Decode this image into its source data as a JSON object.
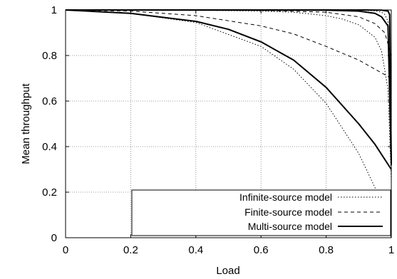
{
  "chart_data": {
    "type": "line",
    "xlabel": "Load",
    "ylabel": "Mean throughput",
    "xlim": [
      0,
      1
    ],
    "ylim": [
      0,
      1
    ],
    "x_ticks": [
      "0",
      "0.2",
      "0.4",
      "0.6",
      "0.8",
      "1"
    ],
    "y_ticks": [
      "0",
      "0.2",
      "0.4",
      "0.6",
      "0.8",
      "1"
    ],
    "grid": true,
    "legend_position": "bottom-right",
    "legend": [
      {
        "label": "Infinite-source model",
        "dash": "dotted"
      },
      {
        "label": "Finite-source model",
        "dash": "dashed"
      },
      {
        "label": "Multi-source model",
        "dash": "solid"
      }
    ],
    "series": [
      {
        "legend_index": 0,
        "x": [
          0,
          0.2,
          0.4,
          0.6,
          0.7,
          0.8,
          0.9,
          0.95,
          1
        ],
        "y": [
          1,
          0.985,
          0.945,
          0.84,
          0.74,
          0.59,
          0.37,
          0.22,
          0
        ]
      },
      {
        "legend_index": 0,
        "x": [
          0,
          0.4,
          0.6,
          0.7,
          0.8,
          0.85,
          0.9,
          0.95,
          0.97,
          0.99,
          1
        ],
        "y": [
          1,
          0.999,
          0.995,
          0.99,
          0.975,
          0.96,
          0.935,
          0.88,
          0.82,
          0.65,
          0.25
        ]
      },
      {
        "legend_index": 0,
        "x": [
          0,
          0.8,
          0.9,
          0.95,
          0.97,
          0.98,
          0.99,
          1
        ],
        "y": [
          1,
          1,
          0.999,
          0.996,
          0.99,
          0.98,
          0.95,
          0.35
        ]
      },
      {
        "legend_index": 1,
        "x": [
          0,
          0.2,
          0.4,
          0.6,
          0.7,
          0.8,
          0.9,
          0.95,
          1
        ],
        "y": [
          1,
          0.995,
          0.975,
          0.93,
          0.895,
          0.84,
          0.78,
          0.74,
          0.7
        ]
      },
      {
        "legend_index": 1,
        "x": [
          0,
          0.6,
          0.8,
          0.9,
          0.95,
          0.98,
          1
        ],
        "y": [
          1,
          0.998,
          0.99,
          0.97,
          0.94,
          0.9,
          0.8
        ]
      },
      {
        "legend_index": 2,
        "x": [
          0,
          0.2,
          0.4,
          0.5,
          0.6,
          0.7,
          0.8,
          0.9,
          0.95,
          1
        ],
        "y": [
          1,
          0.985,
          0.95,
          0.915,
          0.86,
          0.78,
          0.66,
          0.5,
          0.41,
          0.3
        ]
      },
      {
        "legend_index": 2,
        "x": [
          0,
          0.8,
          0.9,
          0.95,
          0.97,
          0.99,
          1
        ],
        "y": [
          1,
          0.999,
          0.995,
          0.985,
          0.97,
          0.93,
          0.32
        ]
      },
      {
        "legend_index": 2,
        "x": [
          0,
          0.9,
          0.97,
          0.99,
          0.995,
          1
        ],
        "y": [
          1,
          1,
          0.999,
          0.995,
          0.98,
          0.33
        ]
      }
    ]
  }
}
